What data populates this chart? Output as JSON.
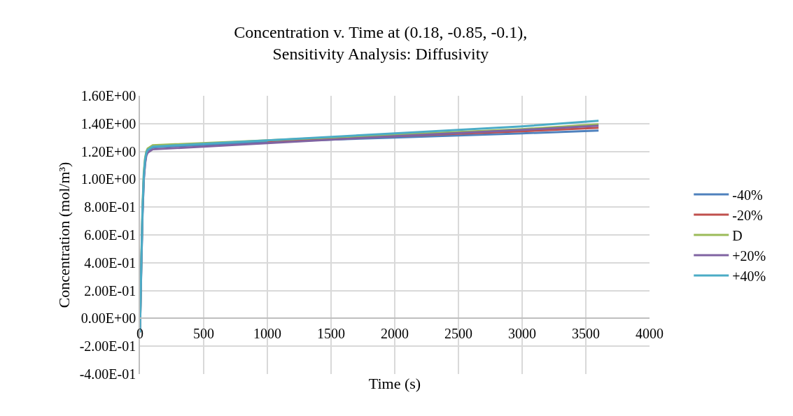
{
  "chart_data": {
    "type": "line",
    "title": "Concentration v. Time at (0.18, -0.85, -0.1),\nSensitivity Analysis: Diffusivity",
    "xlabel": "Time (s)",
    "ylabel": "Concentration (mol/m³)",
    "x": [
      0,
      10,
      20,
      30,
      40,
      50,
      60,
      100,
      1000,
      2000,
      3000,
      3600
    ],
    "series": [
      {
        "name": "-40%",
        "color": "#4f81bd",
        "values": [
          -0.1,
          0.35,
          0.75,
          1.0,
          1.12,
          1.18,
          1.2,
          1.23,
          1.27,
          1.3,
          1.33,
          1.35
        ]
      },
      {
        "name": "-20%",
        "color": "#c0504d",
        "values": [
          null,
          null,
          null,
          null,
          null,
          null,
          null,
          null,
          1.275,
          1.31,
          1.345,
          1.37
        ]
      },
      {
        "name": "D",
        "color": "#9bbb59",
        "values": [
          -0.1,
          0.4,
          0.8,
          1.05,
          1.15,
          1.2,
          1.22,
          1.245,
          1.28,
          1.32,
          1.36,
          1.395
        ]
      },
      {
        "name": "+20%",
        "color": "#8064a2",
        "values": [
          -0.1,
          0.36,
          0.75,
          1.0,
          1.11,
          1.17,
          1.19,
          1.215,
          1.26,
          1.31,
          1.355,
          1.385
        ]
      },
      {
        "name": "+40%",
        "color": "#4bacc6",
        "values": [
          -0.1,
          0.38,
          0.78,
          1.03,
          1.14,
          1.19,
          1.21,
          1.235,
          1.28,
          1.33,
          1.38,
          1.42
        ]
      }
    ],
    "xlim": [
      0,
      4000
    ],
    "xticks": [
      0,
      500,
      1000,
      1500,
      2000,
      2500,
      3000,
      3500,
      4000
    ],
    "ylim": [
      -0.4,
      1.6
    ],
    "yticks": [
      {
        "value": -0.4,
        "label": "-4.00E-01"
      },
      {
        "value": -0.2,
        "label": "-2.00E-01"
      },
      {
        "value": 0,
        "label": "0.00E+00"
      },
      {
        "value": 0.2,
        "label": "2.00E-01"
      },
      {
        "value": 0.4,
        "label": "4.00E-01"
      },
      {
        "value": 0.6,
        "label": "6.00E-01"
      },
      {
        "value": 0.8,
        "label": "8.00E-01"
      },
      {
        "value": 1.0,
        "label": "1.00E+00"
      },
      {
        "value": 1.2,
        "label": "1.20E+00"
      },
      {
        "value": 1.4,
        "label": "1.40E+00"
      },
      {
        "value": 1.6,
        "label": "1.60E+00"
      }
    ],
    "grid": true,
    "legend": "right",
    "marker": "none",
    "line_style": "solid"
  }
}
